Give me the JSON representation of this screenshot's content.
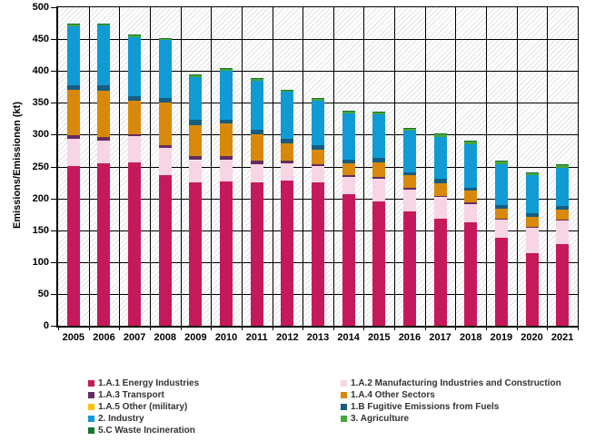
{
  "chart_data": {
    "type": "bar",
    "stacked": true,
    "title": "",
    "xlabel": "",
    "ylabel": "Emissions/Emissionen (kt)",
    "ylim": [
      0,
      500
    ],
    "yticks": [
      0,
      50,
      100,
      150,
      200,
      250,
      300,
      350,
      400,
      450,
      500
    ],
    "grid": "horizontal and vertical black gridlines",
    "plot_background": "white with light gray diagonal hatch",
    "legend_position": "bottom, two columns",
    "categories": [
      "2005",
      "2006",
      "2007",
      "2008",
      "2009",
      "2010",
      "2011",
      "2012",
      "2013",
      "2014",
      "2015",
      "2016",
      "2017",
      "2018",
      "2019",
      "2020",
      "2021"
    ],
    "series": [
      {
        "name": "1.A.1 Energy Industries",
        "color": "#C6195C",
        "values": [
          251,
          255,
          257,
          237,
          225,
          227,
          225,
          228,
          225,
          207,
          195,
          179,
          168,
          162,
          138,
          114,
          128
        ]
      },
      {
        "name": "1.A.2 Manufacturing Industries and Construction",
        "color": "#F8D5E4",
        "values": [
          42,
          36,
          41,
          42,
          35,
          34,
          29,
          27,
          26,
          26,
          36,
          34,
          34,
          29,
          29,
          40,
          37
        ]
      },
      {
        "name": "1.A.3 Transport",
        "color": "#622D60",
        "values": [
          6,
          5,
          3,
          5,
          6,
          5,
          5,
          4,
          3,
          3,
          3,
          4,
          2,
          3,
          1,
          2,
          2
        ]
      },
      {
        "name": "1.A.4 Other Sectors",
        "color": "#D8890B",
        "values": [
          71,
          73,
          53,
          67,
          49,
          52,
          42,
          27,
          22,
          19,
          22,
          19,
          19,
          18,
          16,
          15,
          15
        ]
      },
      {
        "name": "1.A.5 Other (military)",
        "color": "#F7C504",
        "values": [
          0,
          0,
          0,
          0,
          0,
          0,
          0,
          0,
          0,
          0,
          0,
          0,
          0,
          0,
          0,
          0,
          0
        ]
      },
      {
        "name": "1.B Fugitive Emissions from Fuels",
        "color": "#155E80",
        "values": [
          7,
          8,
          7,
          7,
          8,
          6,
          7,
          7,
          7,
          6,
          7,
          5,
          8,
          5,
          6,
          6,
          6
        ]
      },
      {
        "name": "2. Industry",
        "color": "#109BD5",
        "values": [
          93,
          94,
          92,
          91,
          68,
          76,
          77,
          74,
          70,
          72,
          69,
          66,
          66,
          68,
          64,
          60,
          60
        ]
      },
      {
        "name": "3. Agriculture",
        "color": "#46A63A",
        "values": [
          3,
          3,
          3,
          2,
          3,
          3,
          3,
          3,
          3,
          3,
          3,
          3,
          4,
          4,
          4,
          3,
          4
        ]
      },
      {
        "name": "5.C Waste Incineration",
        "color": "#17742F",
        "values": [
          1,
          1,
          1,
          1,
          1,
          1,
          1,
          1,
          1,
          1,
          1,
          1,
          1,
          1,
          1,
          1,
          1
        ]
      }
    ],
    "legend_columns": [
      [
        0,
        2,
        4,
        6,
        8
      ],
      [
        1,
        3,
        5,
        7
      ]
    ]
  }
}
